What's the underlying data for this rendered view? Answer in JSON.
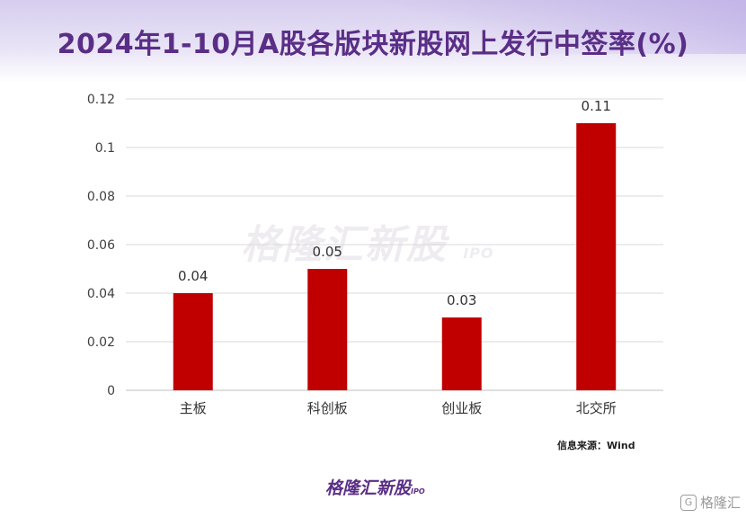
{
  "header": {
    "title": "2024年1-10月A股各版块新股网上发行中签率(%)"
  },
  "watermark": {
    "brand": "格隆汇新股",
    "suffix": "IPO"
  },
  "source_note": "信息来源：Wind",
  "footer": {
    "brand": "格隆汇新股",
    "suffix": "IPO"
  },
  "corner_badge": {
    "glyph": "G",
    "text": "格隆汇"
  },
  "chart_data": {
    "type": "bar",
    "title": "2024年1-10月A股各版块新股网上发行中签率(%)",
    "categories": [
      "主板",
      "科创板",
      "创业板",
      "北交所"
    ],
    "values": [
      0.04,
      0.05,
      0.03,
      0.11
    ],
    "value_labels": [
      "0.04",
      "0.05",
      "0.03",
      "0.11"
    ],
    "y_ticks": [
      "0",
      "0.02",
      "0.04",
      "0.06",
      "0.08",
      "0.1",
      "0.12"
    ],
    "ylim": [
      0,
      0.12
    ],
    "grid": true,
    "legend": "none",
    "colors": {
      "bar": "#c00000",
      "grid": "#d9d9d9",
      "text": "#404040"
    }
  }
}
